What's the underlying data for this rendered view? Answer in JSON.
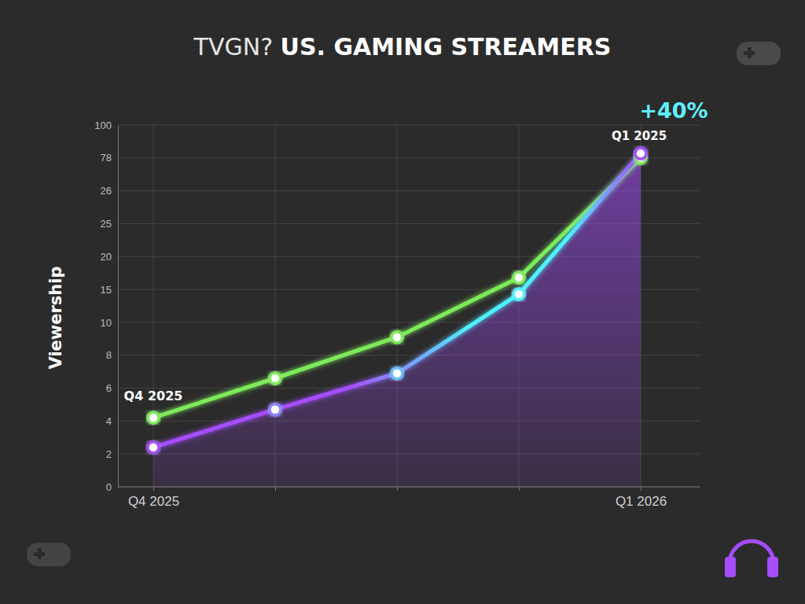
{
  "chart_data": {
    "type": "line",
    "title": "TVGN? US. GAMING STREAMERS",
    "y_label": "Viewership",
    "categories": [
      "Q4 2025",
      null,
      null,
      null,
      "Q1 2026"
    ],
    "series": [
      {
        "color": "#7dea5a",
        "values": [
          4.2,
          6.6,
          9.1,
          16.8,
          78
        ]
      },
      {
        "color": "#a64dff",
        "values": [
          2.4,
          4.7,
          6.9,
          14.3,
          81
        ]
      }
    ],
    "ylim": [
      0,
      100
    ],
    "yticks": [
      0,
      2,
      4,
      6,
      8,
      10,
      15,
      20,
      25,
      26,
      78,
      100
    ],
    "grid": true,
    "marker": "circle",
    "annotations": [
      "+40%",
      "Q1 2025",
      "Q4 2025"
    ]
  }
}
